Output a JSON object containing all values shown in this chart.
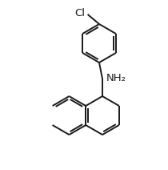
{
  "background_color": "#ffffff",
  "line_color": "#1a1a1a",
  "line_width": 1.4,
  "figsize": [
    2.1,
    2.12
  ],
  "dpi": 100,
  "nh2_text": "NH₂",
  "cl_text": "Cl",
  "font_size": 9.5
}
